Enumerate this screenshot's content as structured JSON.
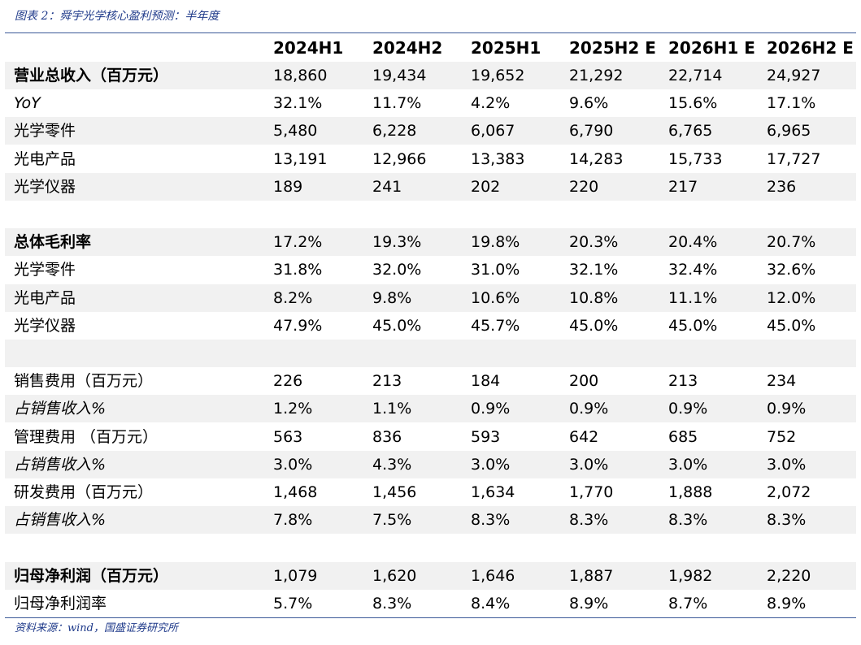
{
  "caption": "图表 2：舜宇光学核心盈利预测：半年度",
  "columns": [
    "2024H1",
    "2024H2",
    "2025H1",
    "2025H2 E",
    "2026H1 E",
    "2026H2 E"
  ],
  "rows": [
    {
      "label": "营业总收入（百万元）",
      "values": [
        "18,860",
        "19,434",
        "19,652",
        "21,292",
        "22,714",
        "24,927"
      ]
    },
    {
      "label": "YoY",
      "values": [
        "32.1%",
        "11.7%",
        "4.2%",
        "9.6%",
        "15.6%",
        "17.1%"
      ]
    },
    {
      "label": "光学零件",
      "values": [
        "5,480",
        "6,228",
        "6,067",
        "6,790",
        "6,765",
        "6,965"
      ]
    },
    {
      "label": "光电产品",
      "values": [
        "13,191",
        "12,966",
        "13,383",
        "14,283",
        "15,733",
        "17,727"
      ]
    },
    {
      "label": "光学仪器",
      "values": [
        "189",
        "241",
        "202",
        "220",
        "217",
        "236"
      ]
    },
    {
      "label": "",
      "values": [
        "",
        "",
        "",
        "",
        "",
        ""
      ]
    },
    {
      "label": "总体毛利率",
      "values": [
        "17.2%",
        "19.3%",
        "19.8%",
        "20.3%",
        "20.4%",
        "20.7%"
      ]
    },
    {
      "label": "光学零件",
      "values": [
        "31.8%",
        "32.0%",
        "31.0%",
        "32.1%",
        "32.4%",
        "32.6%"
      ]
    },
    {
      "label": "光电产品",
      "values": [
        "8.2%",
        "9.8%",
        "10.6%",
        "10.8%",
        "11.1%",
        "12.0%"
      ]
    },
    {
      "label": "光学仪器",
      "values": [
        "47.9%",
        "45.0%",
        "45.7%",
        "45.0%",
        "45.0%",
        "45.0%"
      ]
    },
    {
      "label": "",
      "values": [
        "",
        "",
        "",
        "",
        "",
        ""
      ]
    },
    {
      "label": "销售费用（百万元）",
      "values": [
        "226",
        "213",
        "184",
        "200",
        "213",
        "234"
      ]
    },
    {
      "label": "占销售收入%",
      "values": [
        "1.2%",
        "1.1%",
        "0.9%",
        "0.9%",
        "0.9%",
        "0.9%"
      ]
    },
    {
      "label": "管理费用 （百万元）",
      "values": [
        "563",
        "836",
        "593",
        "642",
        "685",
        "752"
      ]
    },
    {
      "label": "占销售收入%",
      "values": [
        "3.0%",
        "4.3%",
        "3.0%",
        "3.0%",
        "3.0%",
        "3.0%"
      ]
    },
    {
      "label": "研发费用（百万元）",
      "values": [
        "1,468",
        "1,456",
        "1,634",
        "1,770",
        "1,888",
        "2,072"
      ]
    },
    {
      "label": "占销售收入%",
      "values": [
        "7.8%",
        "7.5%",
        "8.3%",
        "8.3%",
        "8.3%",
        "8.3%"
      ]
    },
    {
      "label": "",
      "values": [
        "",
        "",
        "",
        "",
        "",
        ""
      ]
    },
    {
      "label": "归母净利润（百万元）",
      "values": [
        "1,079",
        "1,620",
        "1,646",
        "1,887",
        "1,982",
        "2,220"
      ]
    },
    {
      "label": "归母净利润率",
      "values": [
        "5.7%",
        "8.3%",
        "8.4%",
        "8.9%",
        "8.7%",
        "8.9%"
      ]
    }
  ],
  "source": "资料来源：wind，国盛证券研究所"
}
